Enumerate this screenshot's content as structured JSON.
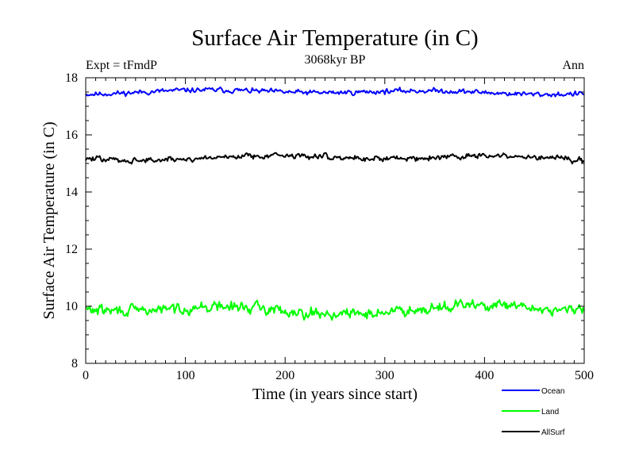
{
  "chart_data": {
    "type": "line",
    "title": "Surface Air Temperature (in C)",
    "subtitle": "3068kyr BP",
    "left_label": "Expt = tFmdP",
    "right_label": "Ann",
    "xlabel": "Time (in years since start)",
    "ylabel": "Surface Air Temperature (in C)",
    "xlim": [
      0,
      500
    ],
    "ylim": [
      8,
      18
    ],
    "xticks": [
      0,
      100,
      200,
      300,
      400,
      500
    ],
    "yticks": [
      8,
      10,
      12,
      14,
      16,
      18
    ],
    "grid": false,
    "legend_position": "bottom-right",
    "series": [
      {
        "name": "Ocean",
        "color": "#0000ff",
        "mean": 17.5,
        "amplitude": 0.13,
        "min": 17.2,
        "max": 17.8,
        "seed": 11
      },
      {
        "name": "Land",
        "color": "#00ff00",
        "mean": 9.9,
        "amplitude": 0.28,
        "min": 9.3,
        "max": 10.5,
        "seed": 29
      },
      {
        "name": "AllSurf",
        "color": "#000000",
        "mean": 15.2,
        "amplitude": 0.15,
        "min": 14.9,
        "max": 15.6,
        "seed": 47
      }
    ]
  }
}
